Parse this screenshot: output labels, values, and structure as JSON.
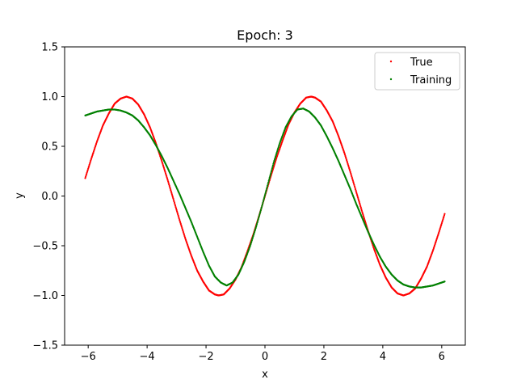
{
  "chart_data": {
    "type": "scatter",
    "title": "Epoch: 3",
    "xlabel": "x",
    "ylabel": "y",
    "xlim": [
      -6.8,
      6.8
    ],
    "ylim": [
      -1.5,
      1.5
    ],
    "xticks": [
      -6,
      -4,
      -2,
      0,
      2,
      4,
      6
    ],
    "yticks": [
      -1.5,
      -1.0,
      -0.5,
      0.0,
      0.5,
      1.0,
      1.5
    ],
    "xtick_labels": [
      "−6",
      "−4",
      "−2",
      "0",
      "2",
      "4",
      "6"
    ],
    "ytick_labels": [
      "−1.5",
      "−1.0",
      "−0.5",
      "0.0",
      "0.5",
      "1.0",
      "1.5"
    ],
    "grid": false,
    "legend_position": "top-right",
    "series": [
      {
        "name": "True",
        "color": "#ff0000",
        "points": [
          [
            -6.1,
            0.18
          ],
          [
            -5.9,
            0.37
          ],
          [
            -5.7,
            0.55
          ],
          [
            -5.5,
            0.71
          ],
          [
            -5.3,
            0.83
          ],
          [
            -5.1,
            0.93
          ],
          [
            -4.9,
            0.98
          ],
          [
            -4.7,
            1.0
          ],
          [
            -4.5,
            0.98
          ],
          [
            -4.3,
            0.92
          ],
          [
            -4.1,
            0.82
          ],
          [
            -3.9,
            0.69
          ],
          [
            -3.7,
            0.53
          ],
          [
            -3.5,
            0.35
          ],
          [
            -3.3,
            0.16
          ],
          [
            -3.1,
            -0.04
          ],
          [
            -2.9,
            -0.24
          ],
          [
            -2.7,
            -0.43
          ],
          [
            -2.5,
            -0.6
          ],
          [
            -2.3,
            -0.75
          ],
          [
            -2.1,
            -0.86
          ],
          [
            -1.9,
            -0.95
          ],
          [
            -1.7,
            -0.99
          ],
          [
            -1.57,
            -1.0
          ],
          [
            -1.4,
            -0.99
          ],
          [
            -1.2,
            -0.93
          ],
          [
            -1.0,
            -0.84
          ],
          [
            -0.8,
            -0.72
          ],
          [
            -0.6,
            -0.56
          ],
          [
            -0.4,
            -0.39
          ],
          [
            -0.2,
            -0.2
          ],
          [
            0.0,
            0.0
          ],
          [
            0.2,
            0.2
          ],
          [
            0.4,
            0.39
          ],
          [
            0.6,
            0.56
          ],
          [
            0.8,
            0.72
          ],
          [
            1.0,
            0.84
          ],
          [
            1.2,
            0.93
          ],
          [
            1.4,
            0.99
          ],
          [
            1.57,
            1.0
          ],
          [
            1.7,
            0.99
          ],
          [
            1.9,
            0.95
          ],
          [
            2.1,
            0.86
          ],
          [
            2.3,
            0.75
          ],
          [
            2.5,
            0.6
          ],
          [
            2.7,
            0.43
          ],
          [
            2.9,
            0.24
          ],
          [
            3.1,
            0.04
          ],
          [
            3.3,
            -0.16
          ],
          [
            3.5,
            -0.35
          ],
          [
            3.7,
            -0.53
          ],
          [
            3.9,
            -0.69
          ],
          [
            4.1,
            -0.82
          ],
          [
            4.3,
            -0.92
          ],
          [
            4.5,
            -0.98
          ],
          [
            4.7,
            -1.0
          ],
          [
            4.9,
            -0.98
          ],
          [
            5.1,
            -0.93
          ],
          [
            5.3,
            -0.83
          ],
          [
            5.5,
            -0.71
          ],
          [
            5.7,
            -0.55
          ],
          [
            5.9,
            -0.37
          ],
          [
            6.1,
            -0.18
          ]
        ]
      },
      {
        "name": "Training",
        "color": "#008000",
        "points": [
          [
            -6.1,
            0.81
          ],
          [
            -5.9,
            0.83
          ],
          [
            -5.7,
            0.85
          ],
          [
            -5.5,
            0.86
          ],
          [
            -5.3,
            0.87
          ],
          [
            -5.1,
            0.87
          ],
          [
            -4.9,
            0.86
          ],
          [
            -4.7,
            0.84
          ],
          [
            -4.5,
            0.81
          ],
          [
            -4.3,
            0.76
          ],
          [
            -4.1,
            0.69
          ],
          [
            -3.9,
            0.61
          ],
          [
            -3.7,
            0.51
          ],
          [
            -3.5,
            0.4
          ],
          [
            -3.3,
            0.28
          ],
          [
            -3.1,
            0.15
          ],
          [
            -2.9,
            0.02
          ],
          [
            -2.7,
            -0.12
          ],
          [
            -2.5,
            -0.26
          ],
          [
            -2.3,
            -0.41
          ],
          [
            -2.1,
            -0.56
          ],
          [
            -1.9,
            -0.7
          ],
          [
            -1.7,
            -0.81
          ],
          [
            -1.5,
            -0.87
          ],
          [
            -1.3,
            -0.9
          ],
          [
            -1.1,
            -0.87
          ],
          [
            -0.9,
            -0.79
          ],
          [
            -0.7,
            -0.66
          ],
          [
            -0.5,
            -0.5
          ],
          [
            -0.3,
            -0.31
          ],
          [
            -0.1,
            -0.1
          ],
          [
            0.1,
            0.12
          ],
          [
            0.3,
            0.34
          ],
          [
            0.5,
            0.53
          ],
          [
            0.7,
            0.69
          ],
          [
            0.9,
            0.8
          ],
          [
            1.1,
            0.87
          ],
          [
            1.3,
            0.88
          ],
          [
            1.5,
            0.85
          ],
          [
            1.7,
            0.79
          ],
          [
            1.9,
            0.71
          ],
          [
            2.1,
            0.6
          ],
          [
            2.3,
            0.48
          ],
          [
            2.5,
            0.35
          ],
          [
            2.7,
            0.21
          ],
          [
            2.9,
            0.07
          ],
          [
            3.1,
            -0.08
          ],
          [
            3.3,
            -0.22
          ],
          [
            3.5,
            -0.36
          ],
          [
            3.7,
            -0.49
          ],
          [
            3.9,
            -0.61
          ],
          [
            4.1,
            -0.71
          ],
          [
            4.3,
            -0.79
          ],
          [
            4.5,
            -0.85
          ],
          [
            4.7,
            -0.89
          ],
          [
            4.9,
            -0.91
          ],
          [
            5.1,
            -0.92
          ],
          [
            5.3,
            -0.92
          ],
          [
            5.5,
            -0.91
          ],
          [
            5.7,
            -0.9
          ],
          [
            5.9,
            -0.88
          ],
          [
            6.1,
            -0.86
          ]
        ]
      }
    ]
  }
}
